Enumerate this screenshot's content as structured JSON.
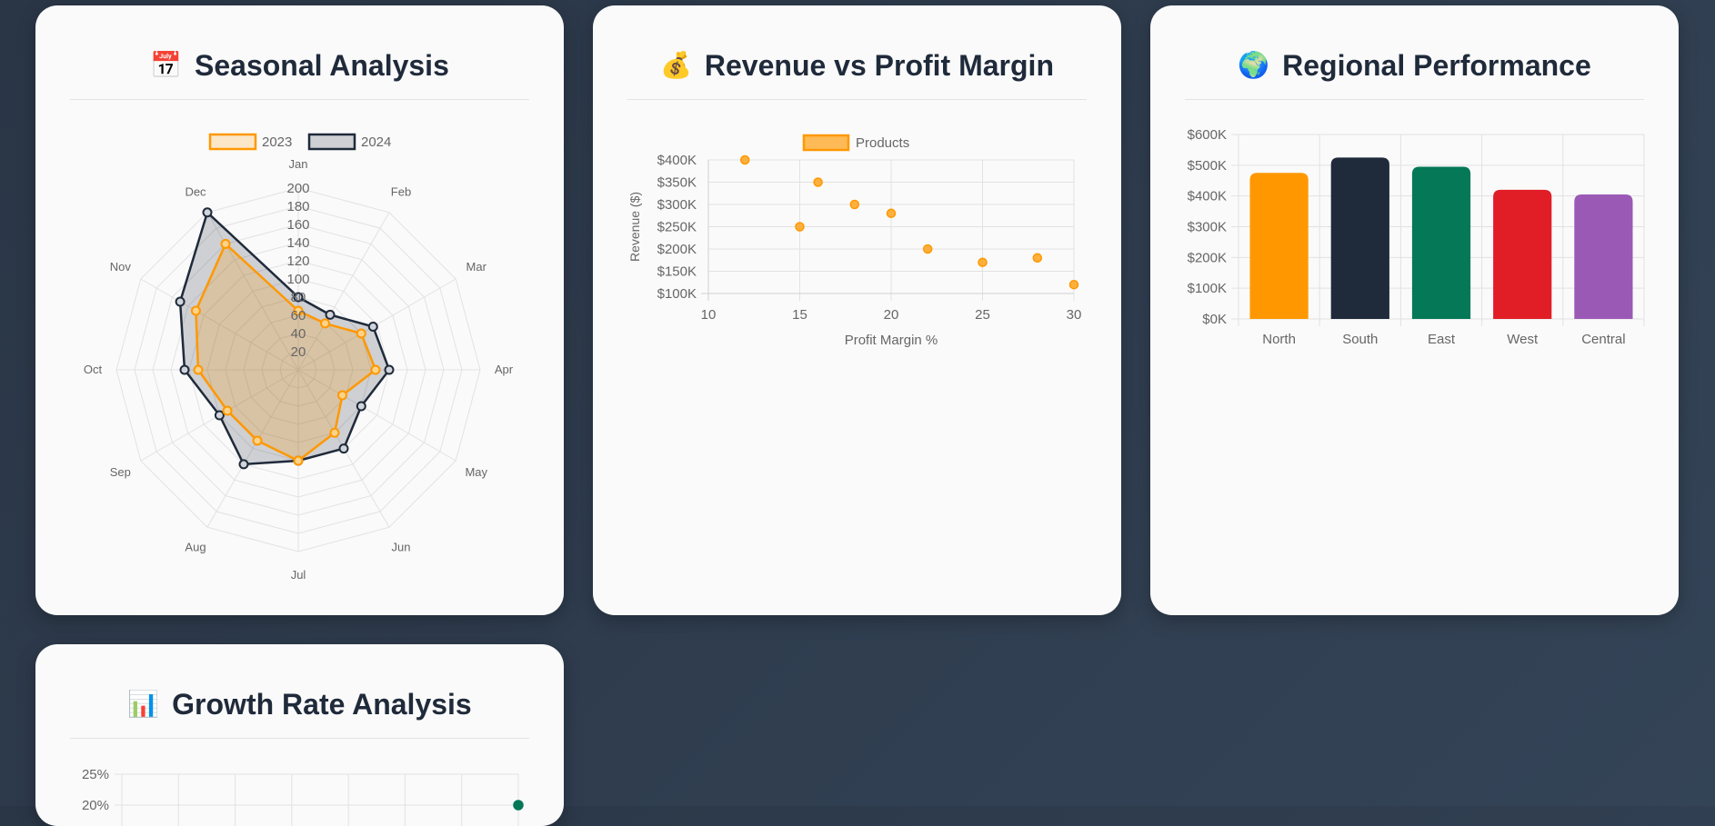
{
  "cards": {
    "seasonal": {
      "title": "Seasonal Analysis",
      "icon": "calendar-icon",
      "emoji": "📅"
    },
    "revenue": {
      "title": "Revenue vs Profit Margin",
      "icon": "money-bag-icon",
      "emoji": "💰"
    },
    "regional": {
      "title": "Regional Performance",
      "icon": "globe-icon",
      "emoji": "🌍"
    },
    "growth": {
      "title": "Growth Rate Analysis",
      "icon": "bar-chart-icon",
      "emoji": "📊"
    }
  },
  "chart_data": [
    {
      "type": "radar",
      "labels": [
        "Jan",
        "Feb",
        "Mar",
        "Apr",
        "May",
        "Jun",
        "Jul",
        "Aug",
        "Sep",
        "Oct",
        "Nov",
        "Dec"
      ],
      "r_ticks": [
        "20",
        "40",
        "60",
        "80",
        "100",
        "120",
        "140",
        "160",
        "180",
        "200"
      ],
      "r_max": 200,
      "series": [
        {
          "name": "2023",
          "values": [
            65,
            59,
            80,
            85,
            56,
            80,
            100,
            90,
            90,
            110,
            130,
            160
          ],
          "color": "#ff9800"
        },
        {
          "name": "2024",
          "values": [
            80,
            70,
            95,
            100,
            80,
            100,
            100,
            120,
            100,
            125,
            150,
            200
          ],
          "color": "#1f2a3a"
        }
      ]
    },
    {
      "type": "scatter",
      "series": [
        {
          "name": "Products",
          "color": "#ff9800",
          "points": [
            [
              12,
              400
            ],
            [
              16,
              350
            ],
            [
              18,
              300
            ],
            [
              20,
              280
            ],
            [
              15,
              250
            ],
            [
              22,
              200
            ],
            [
              25,
              170
            ],
            [
              28,
              180
            ],
            [
              30,
              120
            ]
          ]
        }
      ],
      "xlabel": "Profit Margin %",
      "ylabel": "Revenue ($)",
      "xlim": [
        10,
        30
      ],
      "ylim": [
        100,
        400
      ],
      "x_ticks": [
        "10",
        "15",
        "20",
        "25",
        "30"
      ],
      "y_ticks": [
        "$100K",
        "$150K",
        "$200K",
        "$250K",
        "$300K",
        "$350K",
        "$400K"
      ]
    },
    {
      "type": "bar",
      "categories": [
        "North",
        "South",
        "East",
        "West",
        "Central"
      ],
      "values": [
        475,
        525,
        495,
        420,
        405
      ],
      "colors": [
        "#ff9800",
        "#1f2a3a",
        "#047857",
        "#e11d26",
        "#9b59b6"
      ],
      "ylim": [
        0,
        600
      ],
      "y_ticks": [
        "$0K",
        "$100K",
        "$200K",
        "$300K",
        "$400K",
        "$500K",
        "$600K"
      ]
    },
    {
      "type": "line",
      "y_ticks": [
        "20%",
        "25%"
      ],
      "series": [
        {
          "name": "",
          "color": "#047857",
          "last_value": 20
        }
      ]
    }
  ]
}
